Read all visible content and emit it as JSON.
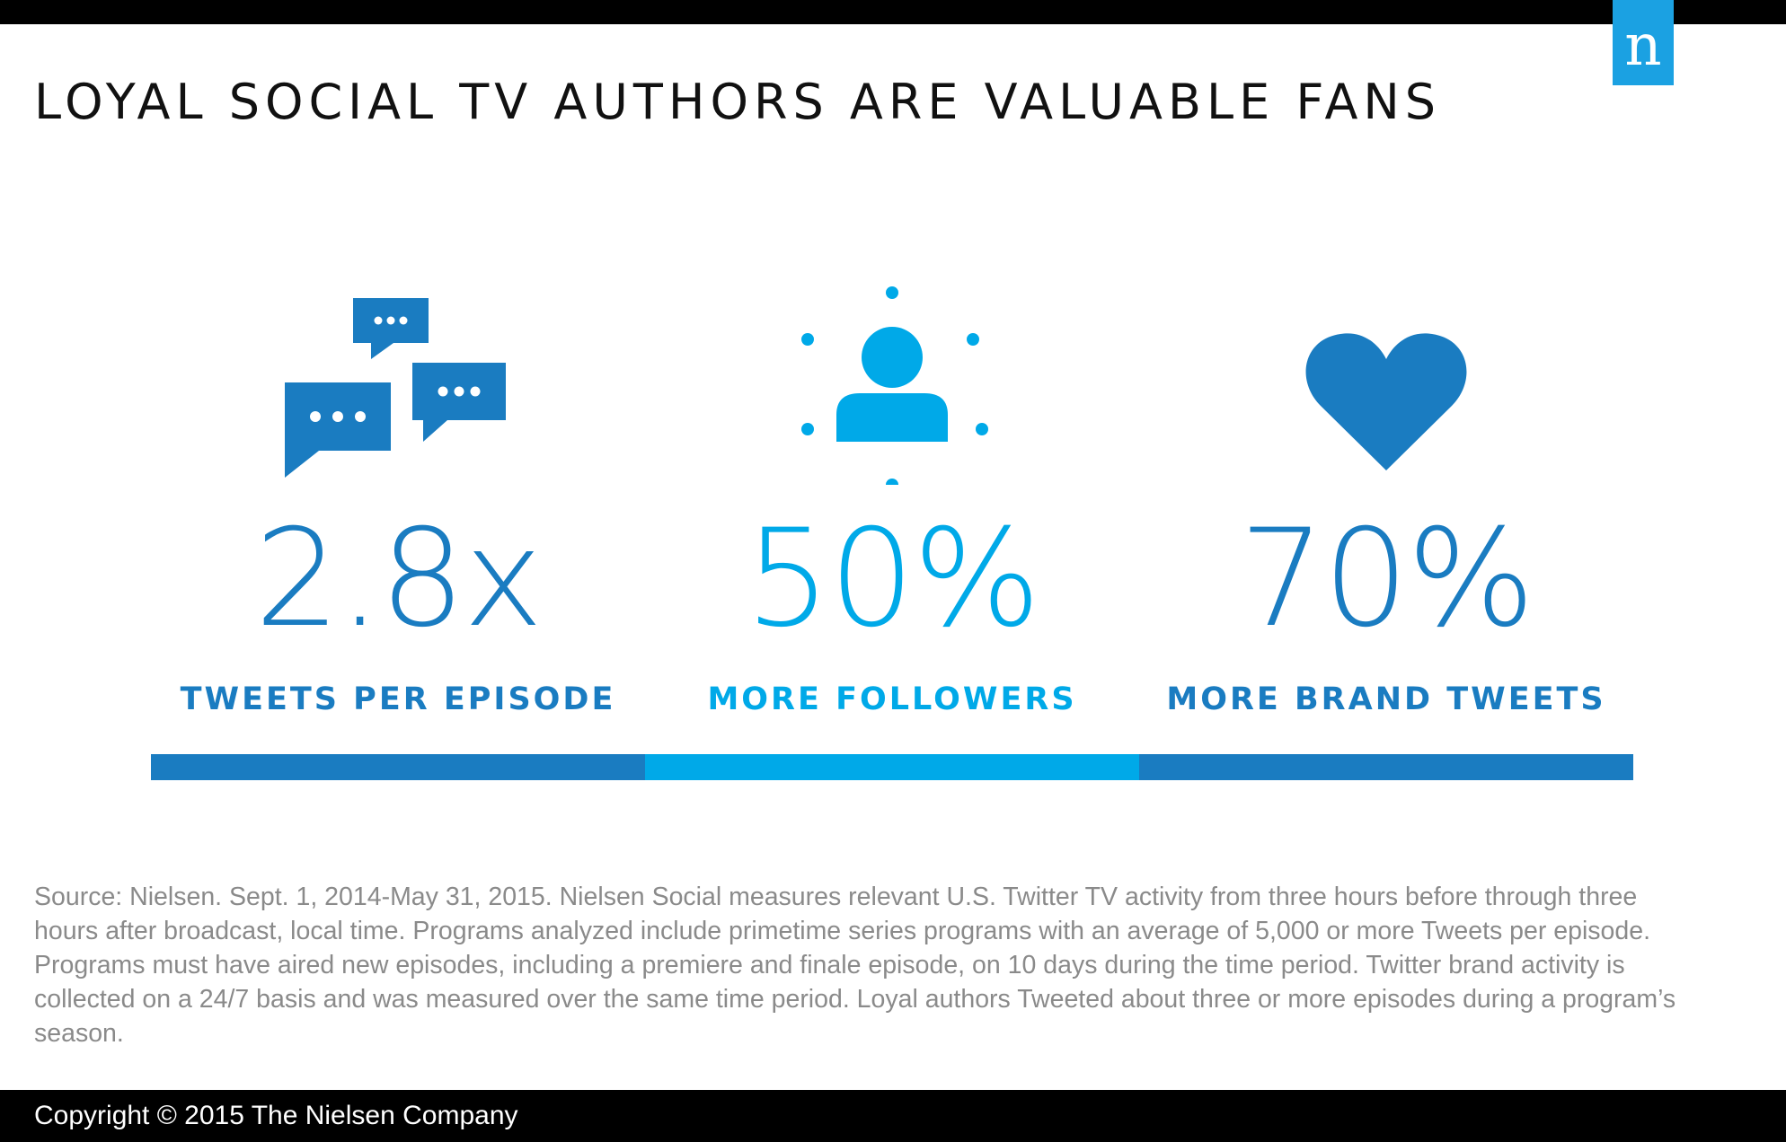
{
  "header": {
    "title": "LOYAL SOCIAL TV AUTHORS ARE VALUABLE FANS",
    "logo_text": "n",
    "logo_color": "#1ba1e2"
  },
  "stats": [
    {
      "icon": "speech-bubbles-icon",
      "value": "2.8x",
      "label": "TWEETS PER EPISODE",
      "color": "#1a7cc1"
    },
    {
      "icon": "person-icon",
      "value": "50%",
      "label": "MORE FOLLOWERS",
      "color": "#00a9e8"
    },
    {
      "icon": "heart-icon",
      "value": "70%",
      "label": "MORE BRAND TWEETS",
      "color": "#1a7cc1"
    }
  ],
  "source": "Source: Nielsen. Sept. 1, 2014-May 31, 2015. Nielsen Social measures relevant U.S. Twitter TV activity from three hours before through three hours after broadcast, local time. Programs analyzed include primetime series programs with an average of 5,000 or more Tweets per episode. Programs must have aired new episodes, including a premiere and finale episode, on 10 days during the time period. Twitter brand activity is collected on a 24/7 basis and was measured over the same time period. Loyal authors Tweeted about three or more episodes during a program’s season.",
  "footer": {
    "copyright": "Copyright © 2015 The Nielsen Company"
  }
}
